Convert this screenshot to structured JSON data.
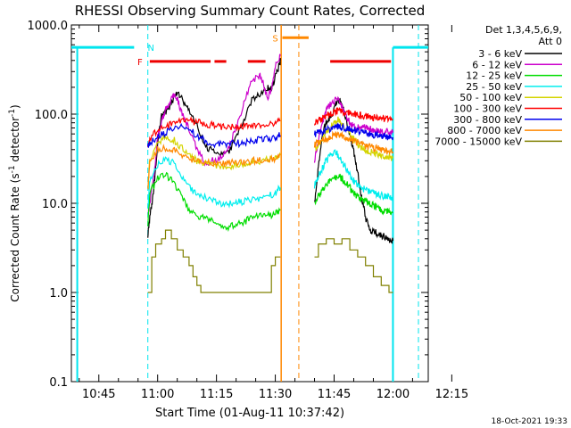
{
  "chart_data": {
    "type": "line",
    "title": "RHESSI Observing Summary Count Rates, Corrected",
    "xlabel": "Start Time (01-Aug-11 10:37:42)",
    "ylabel_main": "Corrected Count Rate (s",
    "ylabel_sup1": "-1",
    "ylabel_mid": " detector",
    "ylabel_sup2": "-1",
    "ylabel_end": ")",
    "yscale": "log",
    "ylim": [
      0.1,
      1000
    ],
    "xlim_minutes": [
      38,
      129
    ],
    "x_ticks": [
      {
        "m": 45,
        "label": "10:45"
      },
      {
        "m": 60,
        "label": "11:00"
      },
      {
        "m": 75,
        "label": "11:15"
      },
      {
        "m": 90,
        "label": "11:30"
      },
      {
        "m": 105,
        "label": "11:45"
      },
      {
        "m": 120,
        "label": "12:00"
      },
      {
        "m": 135,
        "label": "12:15"
      }
    ],
    "y_ticks": [
      {
        "v": 1000,
        "label": "1000.0"
      },
      {
        "v": 100,
        "label": "100.0"
      },
      {
        "v": 10,
        "label": "10.0"
      },
      {
        "v": 1,
        "label": "1.0"
      },
      {
        "v": 0.1,
        "label": "0.1"
      }
    ],
    "legend_header": [
      "Det 1,3,4,5,6,9,",
      "Att 0"
    ],
    "legend_position": "top-right",
    "series": [
      {
        "name": "3 - 6 keV",
        "color": "#000000",
        "x": [
          57.5,
          58,
          58.8,
          59.5,
          60.3,
          61,
          62,
          63,
          64,
          65,
          66.5,
          68,
          70,
          72,
          74,
          76,
          78,
          80,
          82,
          84,
          86,
          88,
          89,
          90,
          91,
          91.3
        ],
        "y": [
          4.5,
          7,
          12,
          25,
          60,
          95,
          105,
          120,
          150,
          180,
          140,
          110,
          75,
          45,
          38,
          35,
          36,
          55,
          85,
          140,
          170,
          200,
          190,
          260,
          350,
          400
        ]
      },
      {
        "name": "6 - 12 keV",
        "color": "#cc00cc",
        "x": [
          57.5,
          58,
          59,
          60,
          61,
          62,
          63,
          64,
          65,
          66,
          67,
          68,
          70,
          72,
          74,
          76,
          78,
          80,
          82,
          84,
          86,
          87,
          88,
          89,
          90,
          91.3
        ],
        "y": [
          7,
          10,
          20,
          55,
          85,
          110,
          130,
          160,
          150,
          105,
          85,
          70,
          40,
          28,
          30,
          32,
          40,
          70,
          130,
          230,
          280,
          220,
          150,
          200,
          350,
          450
        ]
      },
      {
        "name": "12 - 25 keV",
        "color": "#00dd00",
        "x": [
          57.5,
          58,
          60,
          62,
          64,
          66,
          68,
          70,
          72,
          74,
          76,
          78,
          80,
          82,
          84,
          86,
          88,
          90,
          91.3
        ],
        "y": [
          5.5,
          13,
          19,
          21,
          17,
          12,
          8.5,
          7,
          6.8,
          6.2,
          5.8,
          5.5,
          5.7,
          6.2,
          6.8,
          7.2,
          7.3,
          7.6,
          8.5
        ]
      },
      {
        "name": "25 - 50 keV",
        "color": "#00eeee",
        "x": [
          57.5,
          58,
          60,
          62,
          64,
          66,
          68,
          70,
          72,
          74,
          76,
          78,
          80,
          82,
          84,
          86,
          88,
          90,
          91.3
        ],
        "y": [
          9,
          18,
          27,
          32,
          28,
          20,
          15,
          12.5,
          11.5,
          10.5,
          10,
          10,
          10.2,
          10.5,
          11,
          11.5,
          12,
          13,
          15
        ]
      },
      {
        "name": "50 - 100 keV",
        "color": "#d4d400",
        "x": [
          57.5,
          58,
          60,
          62,
          64,
          66,
          68,
          70,
          72,
          74,
          76,
          78,
          80,
          82,
          84,
          86,
          88,
          90,
          91.3
        ],
        "y": [
          15,
          32,
          45,
          55,
          52,
          42,
          34,
          30,
          28,
          27,
          26,
          26,
          27,
          28,
          29,
          30,
          31,
          32,
          35
        ]
      },
      {
        "name": "100 - 300 keV",
        "color": "#ff0000",
        "x": [
          57.5,
          58,
          60,
          62,
          64,
          66,
          68,
          70,
          72,
          74,
          76,
          78,
          80,
          82,
          84,
          86,
          88,
          90,
          91.3
        ],
        "y": [
          45,
          55,
          65,
          72,
          78,
          83,
          85,
          82,
          78,
          75,
          73,
          72,
          72,
          73,
          75,
          76,
          78,
          80,
          84
        ]
      },
      {
        "name": "300 - 800 keV",
        "color": "#0000ee",
        "x": [
          57.5,
          58,
          60,
          62,
          64,
          66,
          68,
          70,
          72,
          74,
          76,
          78,
          80,
          82,
          84,
          86,
          88,
          90,
          91.3
        ],
        "y": [
          45,
          48,
          55,
          62,
          68,
          72,
          67,
          58,
          50,
          47,
          46,
          46,
          47,
          48,
          50,
          52,
          53,
          55,
          58
        ]
      },
      {
        "name": "800 - 7000 keV",
        "color": "#ff8800",
        "x": [
          57.5,
          58,
          60,
          62,
          64,
          66,
          68,
          70,
          72,
          74,
          76,
          78,
          80,
          82,
          84,
          86,
          88,
          90,
          91.3
        ],
        "y": [
          14,
          30,
          40,
          42,
          40,
          36,
          32,
          30,
          29,
          28,
          28,
          28,
          28.5,
          29,
          30,
          30.5,
          31,
          32,
          35
        ]
      },
      {
        "name": "7000 - 15000 keV",
        "color": "#808000",
        "x": [
          57.5,
          58.5,
          58.5,
          59.5,
          59.5,
          61,
          61,
          62,
          62,
          63.5,
          63.5,
          65,
          65,
          66.5,
          66.5,
          68,
          68,
          69,
          69,
          70,
          70,
          71,
          71,
          89,
          89,
          90,
          90,
          91.3
        ],
        "y": [
          1.0,
          1.0,
          2.5,
          2.5,
          3.5,
          3.5,
          4.0,
          4.0,
          5.0,
          5.0,
          4.0,
          4.0,
          3.0,
          3.0,
          2.5,
          2.5,
          2.0,
          2.0,
          1.5,
          1.5,
          1.2,
          1.2,
          1.0,
          1.0,
          2.0,
          2.0,
          2.5,
          2.5
        ]
      }
    ],
    "series_after": [
      {
        "color": "#000000",
        "x": [
          100,
          101,
          102,
          103,
          104,
          105,
          106,
          107,
          108,
          109,
          110,
          111,
          112,
          113,
          114,
          115,
          116,
          117,
          118,
          119,
          120
        ],
        "y": [
          10,
          25,
          60,
          80,
          95,
          110,
          150,
          130,
          90,
          60,
          38,
          22,
          12,
          7,
          5,
          4.8,
          4.6,
          4.4,
          4.2,
          4.0,
          3.8
        ]
      },
      {
        "color": "#cc00cc",
        "x": [
          100,
          101,
          102,
          103,
          104,
          105,
          106,
          107,
          108,
          109,
          110,
          111,
          112,
          113,
          114,
          115,
          116,
          117,
          118,
          119,
          120
        ],
        "y": [
          30,
          50,
          80,
          110,
          130,
          140,
          160,
          120,
          95,
          80,
          72,
          70,
          70,
          70,
          68,
          67,
          66,
          65,
          64,
          63,
          62
        ]
      },
      {
        "color": "#00dd00",
        "x": [
          100,
          101,
          102,
          103,
          104,
          105,
          106,
          107,
          108,
          109,
          110,
          111,
          112,
          113,
          114,
          115,
          116,
          117,
          118,
          119,
          120
        ],
        "y": [
          10,
          12,
          14,
          16,
          18,
          19,
          20,
          19,
          17,
          15,
          13,
          12,
          11,
          10.5,
          10,
          9.5,
          9,
          8.5,
          8.2,
          8,
          7.8
        ]
      },
      {
        "color": "#00eeee",
        "x": [
          100,
          101,
          102,
          103,
          104,
          105,
          106,
          107,
          108,
          109,
          110,
          111,
          112,
          113,
          114,
          115,
          116,
          117,
          118,
          119,
          120
        ],
        "y": [
          16,
          20,
          25,
          30,
          34,
          38,
          35,
          30,
          25,
          21,
          18,
          16,
          15,
          14,
          13.5,
          13,
          12.5,
          12.2,
          12,
          11.8,
          11.5
        ]
      },
      {
        "color": "#d4d400",
        "x": [
          100,
          101,
          102,
          103,
          104,
          105,
          106,
          107,
          108,
          109,
          110,
          111,
          112,
          113,
          114,
          115,
          116,
          117,
          118,
          119,
          120
        ],
        "y": [
          40,
          45,
          52,
          60,
          70,
          80,
          88,
          80,
          70,
          60,
          52,
          46,
          42,
          40,
          38,
          37,
          36,
          35,
          34,
          33,
          32
        ]
      },
      {
        "color": "#ff0000",
        "x": [
          100,
          101,
          102,
          103,
          104,
          105,
          106,
          107,
          108,
          109,
          110,
          111,
          112,
          113,
          114,
          115,
          116,
          117,
          118,
          119,
          120
        ],
        "y": [
          80,
          85,
          90,
          95,
          100,
          105,
          110,
          108,
          105,
          102,
          100,
          98,
          96,
          94,
          93,
          92,
          91,
          90,
          89,
          88,
          88
        ]
      },
      {
        "color": "#0000ee",
        "x": [
          100,
          101,
          102,
          103,
          104,
          105,
          106,
          107,
          108,
          109,
          110,
          111,
          112,
          113,
          114,
          115,
          116,
          117,
          118,
          119,
          120
        ],
        "y": [
          60,
          62,
          64,
          66,
          68,
          70,
          72,
          71,
          70,
          68,
          66,
          64,
          62,
          61,
          60,
          59,
          58,
          57,
          56,
          55,
          55
        ]
      },
      {
        "color": "#ff8800",
        "x": [
          100,
          101,
          102,
          103,
          104,
          105,
          106,
          107,
          108,
          109,
          110,
          111,
          112,
          113,
          114,
          115,
          116,
          117,
          118,
          119,
          120
        ],
        "y": [
          45,
          48,
          50,
          53,
          56,
          58,
          60,
          58,
          55,
          52,
          50,
          48,
          46,
          44,
          43,
          42,
          41,
          40,
          39,
          38,
          38
        ]
      },
      {
        "color": "#808000",
        "x": [
          100,
          101,
          101,
          103,
          103,
          105,
          105,
          107,
          107,
          109,
          109,
          111,
          111,
          113,
          113,
          115,
          115,
          117,
          117,
          119,
          119,
          120
        ],
        "y": [
          2.5,
          2.5,
          3.5,
          3.5,
          4.0,
          4.0,
          3.5,
          3.5,
          4.0,
          4.0,
          3.0,
          3.0,
          2.5,
          2.5,
          2.0,
          2.0,
          1.5,
          1.5,
          1.2,
          1.2,
          1.0,
          1.0
        ]
      }
    ],
    "attenuator_lines": [
      {
        "m": 39.5,
        "y1": 0.1,
        "y2": 560,
        "style": "solid",
        "color": "#00e5ee"
      },
      {
        "m": 120,
        "y1": 0.1,
        "y2": 560,
        "style": "solid",
        "color": "#00e5ee"
      }
    ],
    "cyan_top_bars": [
      {
        "m1": 38,
        "m2": 54
      },
      {
        "m1": 120,
        "m2": 129
      }
    ],
    "dashed_lines": [
      {
        "m": 57.5,
        "color": "#00e5ee"
      },
      {
        "m": 126.5,
        "color": "#00e5ee"
      },
      {
        "m": 96,
        "color": "#ff8800"
      }
    ],
    "saa_solid_line": {
      "m": 91.5,
      "color": "#ff8800"
    },
    "flare_markers": [
      {
        "label": "F",
        "color": "#ee0000",
        "m": 55.5,
        "v": 390
      },
      {
        "label": "N",
        "color": "#00e5ee",
        "m": 58.3,
        "v": 560
      },
      {
        "label": "S",
        "color": "#ff8800",
        "m": 90,
        "v": 720
      }
    ],
    "flare_bars": [
      {
        "m1": 58,
        "m2": 73.5,
        "color": "#ee0000",
        "v": 390
      },
      {
        "m1": 74.5,
        "m2": 77.5,
        "color": "#ee0000",
        "v": 390
      },
      {
        "m1": 83,
        "m2": 87.5,
        "color": "#ee0000",
        "v": 390
      },
      {
        "m1": 91.8,
        "m2": 98.5,
        "color": "#ff8800",
        "v": 720
      },
      {
        "m1": 104,
        "m2": 119.5,
        "color": "#ee0000",
        "v": 390
      }
    ],
    "footer": "18-Oct-2021 19:33"
  }
}
